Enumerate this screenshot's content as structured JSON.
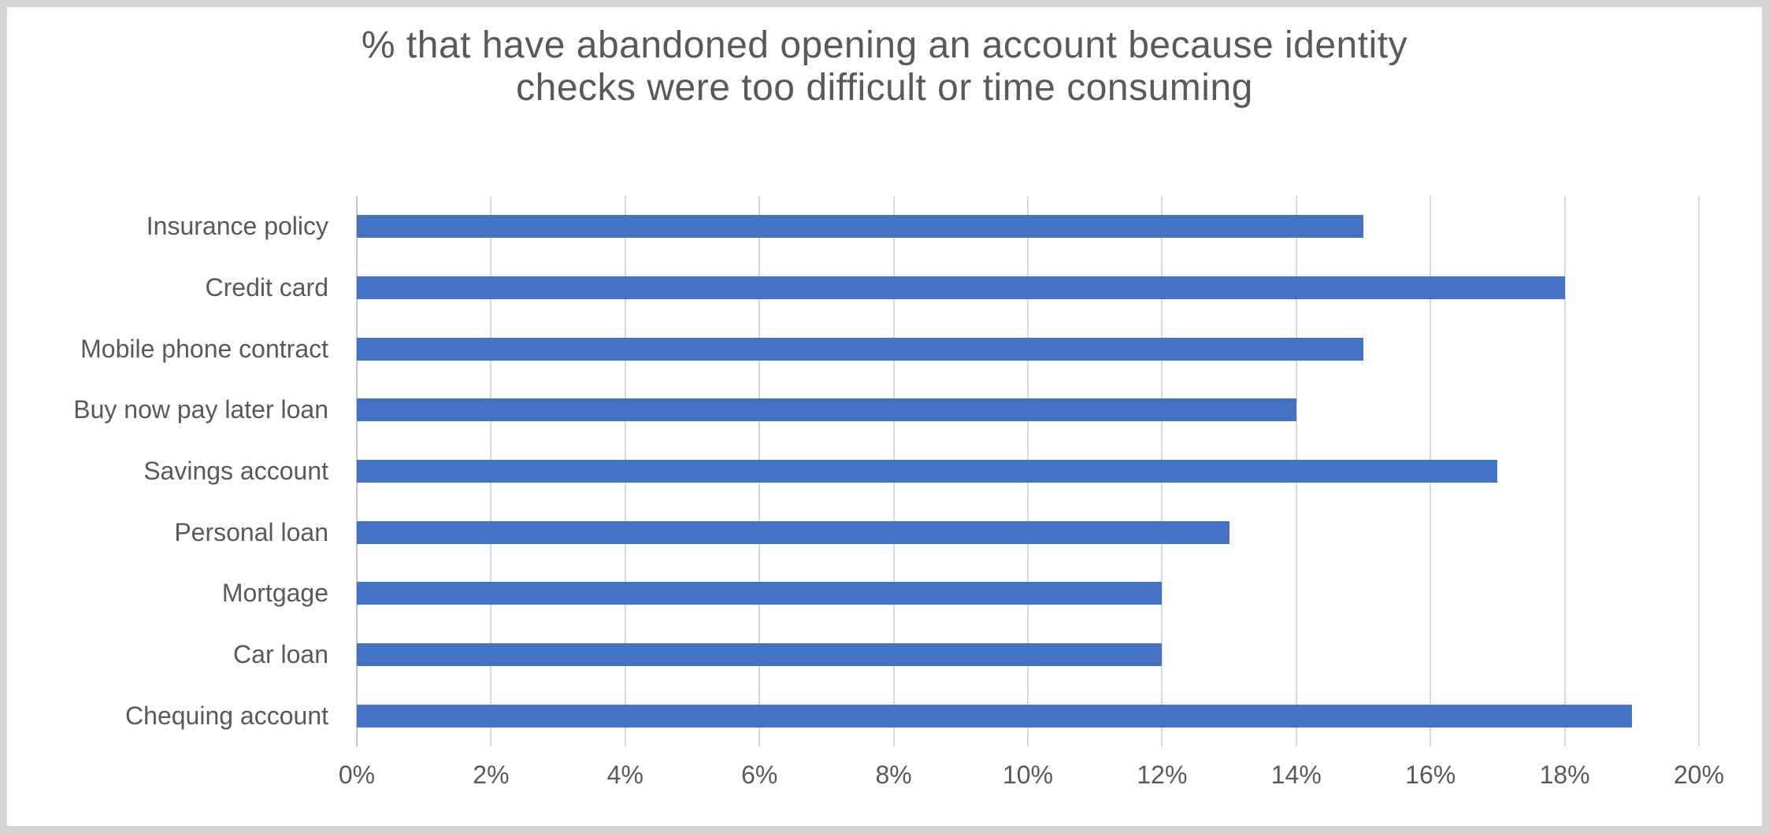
{
  "chart_data": {
    "type": "bar",
    "orientation": "horizontal",
    "title": "% that have abandoned opening an account because identity\nchecks were too difficult or time consuming",
    "categories": [
      "Insurance policy",
      "Credit card",
      "Mobile phone contract",
      "Buy now pay later loan",
      "Savings account",
      "Personal loan",
      "Mortgage",
      "Car loan",
      "Chequing account"
    ],
    "values": [
      15,
      18,
      15,
      14,
      17,
      13,
      12,
      12,
      19
    ],
    "xlabel": "",
    "ylabel": "",
    "xlim": [
      0,
      20
    ],
    "x_tick_step": 2,
    "x_tick_labels": [
      "0%",
      "2%",
      "4%",
      "6%",
      "8%",
      "10%",
      "12%",
      "14%",
      "16%",
      "18%",
      "20%"
    ],
    "grid": true,
    "legend": false,
    "bar_color": "#4472c4",
    "text_color": "#595959",
    "gridline_color": "#d9d9d9",
    "axis_line_color": "#c9c9c9",
    "background_color": "#ffffff",
    "frame_border_color": "#d5d5d5"
  }
}
